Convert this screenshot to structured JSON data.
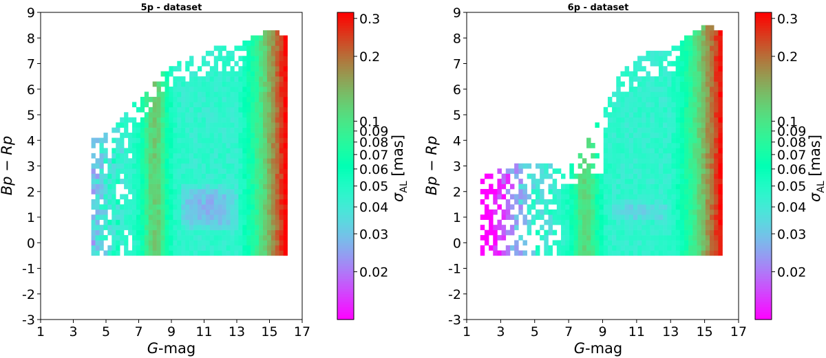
{
  "chart_data": [
    {
      "type": "heatmap",
      "title": "5p - dataset",
      "xlabel": "G-mag",
      "ylabel": "Bp − Rp",
      "xlim": [
        1,
        17
      ],
      "ylim": [
        -3,
        9
      ],
      "xticks": [
        "1",
        "3",
        "5",
        "7",
        "9",
        "11",
        "13",
        "15",
        "17"
      ],
      "yticks": [
        "-3",
        "-2",
        "-1",
        "0",
        "1",
        "2",
        "3",
        "4",
        "5",
        "6",
        "7",
        "8",
        "9"
      ],
      "colorbar": {
        "label": "σAL [mas]",
        "scale": "log",
        "range": [
          0.012,
          0.32
        ],
        "ticks": [
          "0.02",
          "0.03",
          "0.04",
          "0.05",
          "0.06",
          "0.07",
          "0.08",
          "0.09",
          "0.1",
          "0.2",
          "0.3"
        ]
      },
      "bin_width_mag": 0.25,
      "bin_height_mag": 0.2,
      "populated_region": {
        "g_mag_min": 4.1,
        "g_mag_max": 16.0,
        "color_min": -0.5,
        "color_upper_edge": [
          [
            4.1,
            3.9
          ],
          [
            5.5,
            4.5
          ],
          [
            7.0,
            5.5
          ],
          [
            8.5,
            6.6
          ],
          [
            10.0,
            7.2
          ],
          [
            11.5,
            7.5
          ],
          [
            13.0,
            7.6
          ],
          [
            14.0,
            8.0
          ],
          [
            15.0,
            8.2
          ],
          [
            16.0,
            8.0
          ]
        ]
      },
      "sigma_al_features": {
        "baseline": 0.045,
        "bright_end_min": 0.02,
        "peak_near_g8": 0.12,
        "dip_band_g": [
          9.5,
          13.0
        ],
        "dip_band_color": [
          0.5,
          2.2
        ],
        "dip_min": 0.028,
        "faint_end_max": 0.32
      }
    },
    {
      "type": "heatmap",
      "title": "6p - dataset",
      "xlabel": "G-mag",
      "ylabel": "Bp − Rp",
      "xlim": [
        1,
        17
      ],
      "ylim": [
        -3,
        9
      ],
      "xticks": [
        "1",
        "3",
        "5",
        "7",
        "9",
        "11",
        "13",
        "15",
        "17"
      ],
      "yticks": [
        "-3",
        "-2",
        "-1",
        "0",
        "1",
        "2",
        "3",
        "4",
        "5",
        "6",
        "7",
        "8",
        "9"
      ],
      "colorbar": {
        "label": "σAL [mas]",
        "scale": "log",
        "range": [
          0.012,
          0.32
        ],
        "ticks": [
          "0.02",
          "0.03",
          "0.04",
          "0.05",
          "0.06",
          "0.07",
          "0.08",
          "0.09",
          "0.1",
          "0.2",
          "0.3"
        ]
      },
      "bin_width_mag": 0.25,
      "bin_height_mag": 0.2,
      "populated_region": {
        "g_mag_min": 1.8,
        "g_mag_max": 16.0,
        "color_min": -0.5,
        "color_upper_edge": [
          [
            2.0,
            2.5
          ],
          [
            4.0,
            3.0
          ],
          [
            6.0,
            3.0
          ],
          [
            7.5,
            3.2
          ],
          [
            9.0,
            5.0
          ],
          [
            10.0,
            6.5
          ],
          [
            11.5,
            7.3
          ],
          [
            13.0,
            7.5
          ],
          [
            14.0,
            8.0
          ],
          [
            15.0,
            8.4
          ],
          [
            16.0,
            8.2
          ]
        ]
      },
      "sigma_al_features": {
        "baseline": 0.045,
        "bright_end_min": 0.02,
        "peak_near_g8": 0.11,
        "dip_band_g": [
          9.5,
          13.0
        ],
        "dip_band_color": [
          0.8,
          1.6
        ],
        "dip_min": 0.034,
        "faint_end_max": 0.32
      }
    }
  ]
}
